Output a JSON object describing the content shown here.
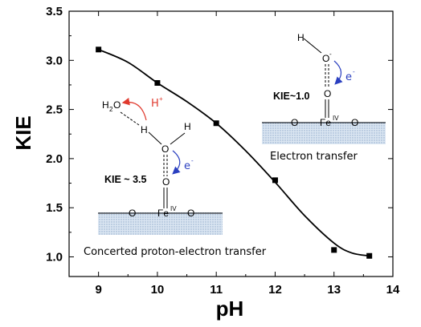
{
  "chart_data": {
    "type": "line",
    "xlabel": "pH",
    "ylabel": "KIE",
    "xlim": [
      8.5,
      14
    ],
    "ylim": [
      0.8,
      3.5
    ],
    "x_ticks": [
      9,
      10,
      11,
      12,
      13,
      14
    ],
    "y_ticks": [
      1.0,
      1.5,
      2.0,
      2.5,
      3.0,
      3.5
    ],
    "x_tick_labels": [
      "9",
      "10",
      "11",
      "12",
      "13",
      "14"
    ],
    "y_tick_labels": [
      "1.0",
      "1.5",
      "2.0",
      "2.5",
      "3.0",
      "3.5"
    ],
    "series": [
      {
        "x": [
          9,
          10,
          11,
          12,
          13,
          13.6
        ],
        "y": [
          3.11,
          2.77,
          2.36,
          1.78,
          1.07,
          1.01
        ]
      }
    ],
    "fit_curve": {
      "x": [
        9,
        9.5,
        10,
        10.5,
        11,
        11.5,
        12,
        12.5,
        13,
        13.3,
        13.6
      ],
      "y": [
        3.11,
        2.98,
        2.77,
        2.58,
        2.36,
        2.08,
        1.76,
        1.42,
        1.14,
        1.04,
        1.01
      ]
    },
    "grid": false,
    "annotations": {
      "left_caption": "Concerted proton-electron transfer",
      "right_caption": "Electron transfer",
      "left_kie": "KIE ~ 3.5",
      "right_kie": "KIE~1.0",
      "electron": "e",
      "electron_sup": "-",
      "proton": "H",
      "proton_sup": "+",
      "water": "H",
      "water_sub": "2",
      "water_o": "O",
      "atom_h": "H",
      "atom_o": "O",
      "atom_o_minus": "-",
      "iron": "Fe",
      "iron_sup": "IV"
    }
  },
  "colors": {
    "proton_arrow": "#e03a2e",
    "electron_arrow": "#2a3fc0",
    "surface": "#c9d9ea"
  }
}
